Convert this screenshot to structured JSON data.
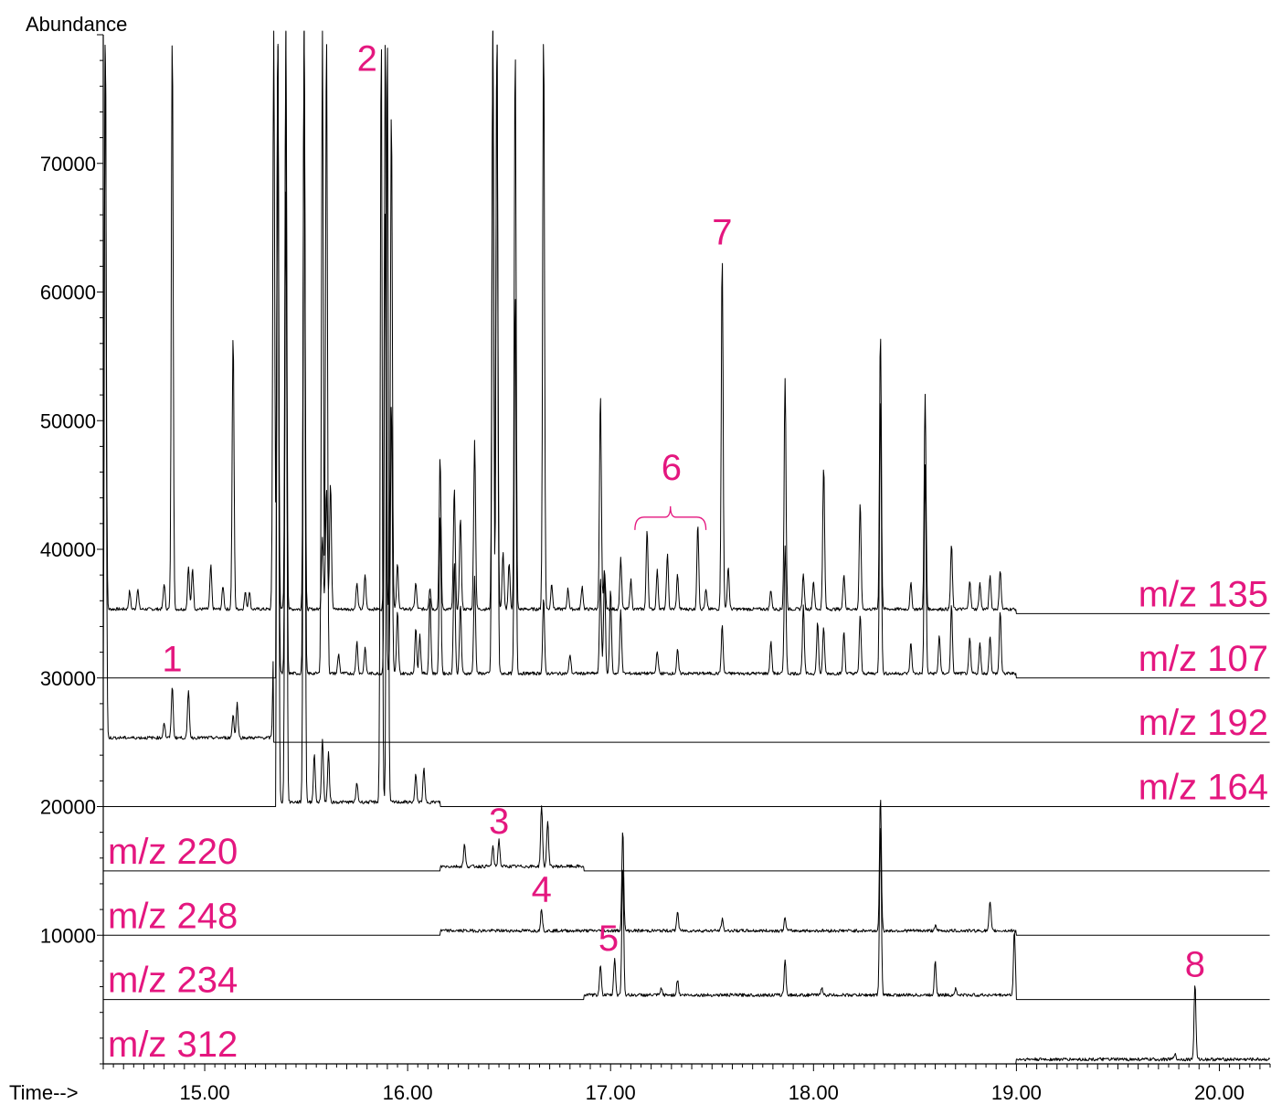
{
  "chart_data": {
    "type": "line",
    "title": "",
    "ylabel": "Abundance",
    "xlabel": "Time-->",
    "xlim": [
      14.5,
      20.25
    ],
    "ylim": [
      0,
      80000
    ],
    "x_ticks": [
      15.0,
      16.0,
      17.0,
      18.0,
      19.0,
      20.0
    ],
    "x_tick_labels": [
      "15.00",
      "16.00",
      "17.00",
      "18.00",
      "19.00",
      "20.00"
    ],
    "y_ticks": [
      10000,
      20000,
      30000,
      40000,
      50000,
      60000,
      70000
    ],
    "y_tick_labels": [
      "10000",
      "20000",
      "30000",
      "40000",
      "50000",
      "60000",
      "70000"
    ],
    "accent_color": "#e4177f",
    "trace_color": "#000000",
    "series": [
      {
        "name": "m/z 135",
        "offset": 35000,
        "range": [
          14.5,
          20.25
        ],
        "active": [
          14.5,
          19.0
        ],
        "peaks": [
          [
            14.51,
            80000
          ],
          [
            14.63,
            36400
          ],
          [
            14.67,
            36600
          ],
          [
            14.8,
            37000
          ],
          [
            14.84,
            80000
          ],
          [
            14.92,
            38300
          ],
          [
            14.94,
            38200
          ],
          [
            15.03,
            38400
          ],
          [
            15.09,
            36800
          ],
          [
            15.14,
            56300
          ],
          [
            15.2,
            36300
          ],
          [
            15.22,
            36400
          ],
          [
            15.34,
            80000
          ],
          [
            15.36,
            80000
          ],
          [
            15.4,
            80000
          ],
          [
            15.49,
            80000
          ],
          [
            15.58,
            40700
          ],
          [
            15.6,
            44500
          ],
          [
            15.62,
            44900
          ],
          [
            15.75,
            37000
          ],
          [
            15.79,
            37700
          ],
          [
            15.89,
            80000
          ],
          [
            15.92,
            74000
          ],
          [
            15.95,
            38500
          ],
          [
            16.04,
            37000
          ],
          [
            16.11,
            36700
          ],
          [
            16.16,
            46800
          ],
          [
            16.23,
            44400
          ],
          [
            16.26,
            42200
          ],
          [
            16.33,
            48200
          ],
          [
            16.42,
            80000
          ],
          [
            16.44,
            80000
          ],
          [
            16.47,
            39400
          ],
          [
            16.5,
            38600
          ],
          [
            16.53,
            78700
          ],
          [
            16.67,
            80000
          ],
          [
            16.71,
            37000
          ],
          [
            16.79,
            36600
          ],
          [
            16.86,
            36800
          ],
          [
            16.95,
            51700
          ],
          [
            16.97,
            38000
          ],
          [
            17.05,
            39000
          ],
          [
            17.1,
            37300
          ],
          [
            17.18,
            41200
          ],
          [
            17.23,
            38000
          ],
          [
            17.28,
            39300
          ],
          [
            17.33,
            37700
          ],
          [
            17.43,
            41600
          ],
          [
            17.47,
            36500
          ],
          [
            17.55,
            62500
          ],
          [
            17.58,
            38300
          ],
          [
            17.79,
            36500
          ],
          [
            17.86,
            52900
          ],
          [
            17.95,
            37700
          ],
          [
            18.0,
            37200
          ],
          [
            18.05,
            46200
          ],
          [
            18.15,
            37800
          ],
          [
            18.23,
            43200
          ],
          [
            18.33,
            56600
          ],
          [
            18.48,
            37000
          ],
          [
            18.55,
            51700
          ],
          [
            18.68,
            40000
          ],
          [
            18.77,
            37300
          ],
          [
            18.82,
            37000
          ],
          [
            18.87,
            37600
          ],
          [
            18.92,
            38100
          ]
        ]
      },
      {
        "name": "m/z 107",
        "offset": 30000,
        "range": [
          14.5,
          20.25
        ],
        "active": [
          15.35,
          19.0
        ],
        "peaks": [
          [
            15.36,
            80000
          ],
          [
            15.4,
            67400
          ],
          [
            15.49,
            80000
          ],
          [
            15.58,
            80000
          ],
          [
            15.6,
            80000
          ],
          [
            15.66,
            31500
          ],
          [
            15.75,
            32500
          ],
          [
            15.79,
            32000
          ],
          [
            15.89,
            66700
          ],
          [
            15.92,
            51200
          ],
          [
            15.95,
            34800
          ],
          [
            16.04,
            33500
          ],
          [
            16.06,
            33000
          ],
          [
            16.11,
            35900
          ],
          [
            16.16,
            42300
          ],
          [
            16.23,
            38700
          ],
          [
            16.26,
            35400
          ],
          [
            16.33,
            37500
          ],
          [
            16.42,
            80000
          ],
          [
            16.44,
            80000
          ],
          [
            16.53,
            59700
          ],
          [
            16.67,
            35900
          ],
          [
            16.8,
            31500
          ],
          [
            16.95,
            37500
          ],
          [
            16.97,
            37800
          ],
          [
            17.0,
            36500
          ],
          [
            17.05,
            35000
          ],
          [
            17.23,
            31800
          ],
          [
            17.33,
            31800
          ],
          [
            17.55,
            33700
          ],
          [
            17.79,
            32500
          ],
          [
            17.86,
            40000
          ],
          [
            17.95,
            35200
          ],
          [
            18.02,
            34000
          ],
          [
            18.05,
            33600
          ],
          [
            18.15,
            33300
          ],
          [
            18.23,
            34600
          ],
          [
            18.33,
            51600
          ],
          [
            18.48,
            32400
          ],
          [
            18.55,
            46300
          ],
          [
            18.62,
            33000
          ],
          [
            18.68,
            35300
          ],
          [
            18.77,
            32700
          ],
          [
            18.82,
            32300
          ],
          [
            18.87,
            33000
          ],
          [
            18.92,
            34900
          ]
        ]
      },
      {
        "name": "m/z 192",
        "offset": 25000,
        "range": [
          14.5,
          20.25
        ],
        "active": [
          14.5,
          15.34
        ],
        "peaks": [
          [
            14.51,
            80000
          ],
          [
            14.8,
            26200
          ],
          [
            14.84,
            29000
          ],
          [
            14.92,
            28700
          ],
          [
            15.14,
            26800
          ],
          [
            15.16,
            27700
          ],
          [
            15.34,
            32400
          ]
        ]
      },
      {
        "name": "m/z 164",
        "offset": 20000,
        "range": [
          14.5,
          20.25
        ],
        "active": [
          15.35,
          16.16
        ],
        "peaks": [
          [
            15.36,
            80000
          ],
          [
            15.4,
            80000
          ],
          [
            15.49,
            80000
          ],
          [
            15.54,
            23700
          ],
          [
            15.58,
            25000
          ],
          [
            15.61,
            23800
          ],
          [
            15.75,
            21500
          ],
          [
            15.87,
            80000
          ],
          [
            15.9,
            80000
          ],
          [
            16.04,
            22100
          ],
          [
            16.08,
            22600
          ]
        ]
      },
      {
        "name": "m/z 220",
        "offset": 15000,
        "range": [
          14.5,
          20.25
        ],
        "active": [
          16.16,
          16.87
        ],
        "peaks": [
          [
            16.28,
            16700
          ],
          [
            16.42,
            16500
          ],
          [
            16.45,
            17100
          ],
          [
            16.66,
            19800
          ],
          [
            16.69,
            18600
          ]
        ]
      },
      {
        "name": "m/z 248",
        "offset": 10000,
        "range": [
          14.5,
          20.25
        ],
        "active": [
          16.16,
          19.0
        ],
        "peaks": [
          [
            16.66,
            11700
          ],
          [
            17.06,
            17900
          ],
          [
            17.33,
            11500
          ],
          [
            17.55,
            10900
          ],
          [
            17.86,
            11000
          ],
          [
            18.33,
            20500
          ],
          [
            18.6,
            10400
          ],
          [
            18.87,
            12300
          ]
        ]
      },
      {
        "name": "m/z 234",
        "offset": 5000,
        "range": [
          14.5,
          20.25
        ],
        "active": [
          16.87,
          19.0
        ],
        "peaks": [
          [
            16.95,
            7400
          ],
          [
            17.02,
            7900
          ],
          [
            17.06,
            15000
          ],
          [
            17.25,
            5500
          ],
          [
            17.33,
            6200
          ],
          [
            17.86,
            7700
          ],
          [
            18.04,
            5600
          ],
          [
            18.33,
            18300
          ],
          [
            18.6,
            7700
          ],
          [
            18.7,
            5500
          ],
          [
            18.99,
            10000
          ]
        ]
      },
      {
        "name": "m/z 312",
        "offset": 0,
        "range": [
          14.5,
          20.25
        ],
        "active": [
          19.0,
          20.25
        ],
        "peaks": [
          [
            19.78,
            450
          ],
          [
            19.88,
            5900
          ]
        ]
      }
    ],
    "peak_labels": [
      {
        "text": "1",
        "x": 14.84,
        "y": 30500
      },
      {
        "text": "2",
        "x": 15.8,
        "y": 77200
      },
      {
        "text": "3",
        "x": 16.45,
        "y": 17900
      },
      {
        "text": "4",
        "x": 16.66,
        "y": 12600
      },
      {
        "text": "5",
        "x": 16.99,
        "y": 8800
      },
      {
        "text": "6",
        "x": 17.3,
        "y": 45400
      },
      {
        "text": "7",
        "x": 17.55,
        "y": 63700
      },
      {
        "text": "8",
        "x": 19.88,
        "y": 6800
      }
    ],
    "bracket": {
      "x_start": 17.12,
      "x_end": 17.47,
      "y": 42500
    }
  }
}
